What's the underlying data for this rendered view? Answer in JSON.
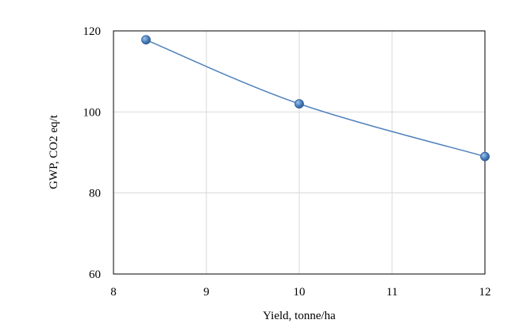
{
  "chart_data": {
    "type": "line",
    "title": "",
    "xlabel": "Yield, tonne/ha",
    "ylabel": "GWP, CO2 eq/t",
    "xlim": [
      8,
      12
    ],
    "ylim": [
      60,
      120
    ],
    "xticks": [
      8,
      9,
      10,
      11,
      12
    ],
    "yticks": [
      60,
      80,
      100,
      120
    ],
    "xtick_labels": [
      "8",
      "9",
      "10",
      "11",
      "12"
    ],
    "ytick_labels": [
      "60",
      "80",
      "100",
      "120"
    ],
    "grid": true,
    "legend": "none",
    "series": [
      {
        "x": [
          8.35,
          10,
          12
        ],
        "y": [
          117.8,
          102,
          89
        ],
        "color": "#4f81bd",
        "marker": "circle",
        "smooth": true
      }
    ]
  }
}
